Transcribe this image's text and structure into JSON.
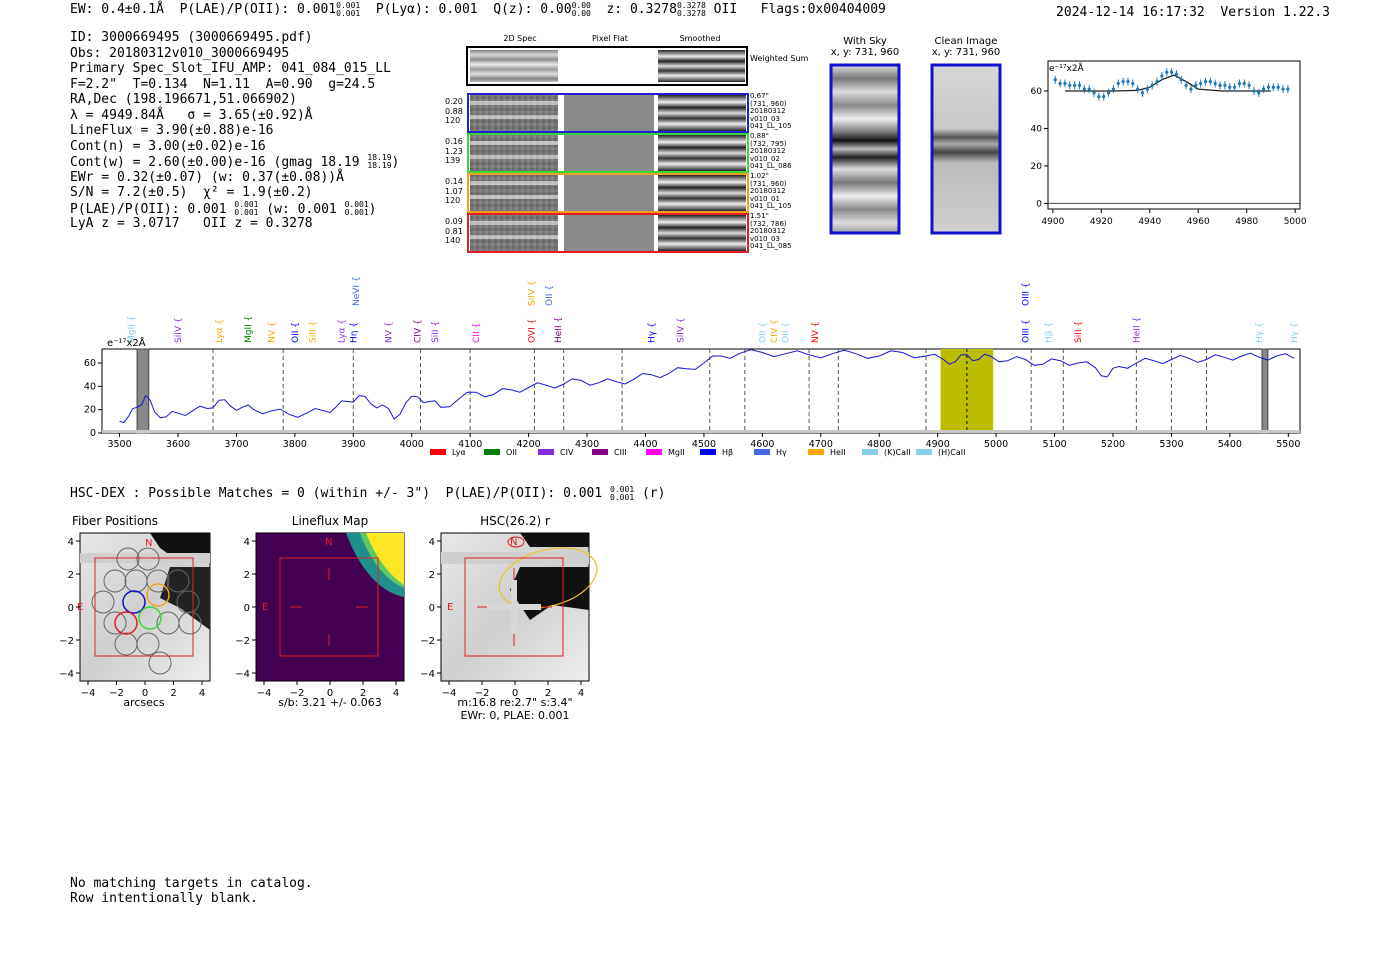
{
  "header": {
    "ew": "EW: 0.4±0.1Å",
    "plae_label": "P(LAE)/P(OII): 0.001",
    "plae_hi": "0.001",
    "plae_lo": "0.001",
    "plya": "P(Lyα): 0.001",
    "qz": "Q(z): 0.00",
    "qz_hi": "0.00",
    "qz_lo": "0.00",
    "z": "z: 0.3278",
    "z_hi": "0.3278",
    "z_lo": "0.3278",
    "z_line": "OII",
    "flags": "Flags:0x00404009",
    "datetime": "2024-12-14 16:17:32",
    "version": "Version 1.22.3"
  },
  "info": {
    "id": "ID: 3000669495 (3000669495.pdf)",
    "obs": "Obs: 20180312v010_3000669495",
    "primary": "Primary Spec_Slot_IFU_AMP: 041_084_015_LL",
    "fparams": "F=2.2\"  T=0.134  N=1.11  A=0.90  g=24.5",
    "radec": "RA,Dec (198.196671,51.066902)",
    "lambda": "λ = 4949.84Å   σ = 3.65(±0.92)Å",
    "lineflux": "LineFlux = 3.90(±0.88)e-16",
    "contn": "Cont(n) = 3.00(±0.02)e-16",
    "contw": "Cont(w) = 2.60(±0.00)e-16 (gmag 18.19",
    "gmag_hi": "18.19",
    "gmag_lo": "18.19",
    "ewr": "EWr = 0.32(±0.07) (w: 0.37(±0.08))Å",
    "sn": "S/N = 7.2(±0.5)  χ² = 1.9(±0.2)",
    "plae": "P(LAE)/P(OII): 0.001",
    "plae_hi": "0.001",
    "plae_lo": "0.001",
    "plae_w": "(w: 0.001",
    "plae_w_hi": "0.001",
    "plae_w_lo": "0.001",
    "lya_z": "LyA z = 3.0717   OII z = 0.3278"
  },
  "stamps": {
    "headers": [
      "2D Spec",
      "Pixel Flat",
      "Smoothed"
    ],
    "weighted_sum": "Weighted Sum",
    "rows": [
      {
        "color": "#1f1fd0",
        "left": [
          "0.20",
          "0.88",
          "120"
        ],
        "right": [
          "0.67\"",
          "(731, 960)",
          "20180312",
          "v010_03",
          "041_LL_105"
        ]
      },
      {
        "color": "#3ad63a",
        "left": [
          "0.16",
          "1.23",
          "139"
        ],
        "right": [
          "0.88\"",
          "(732, 795)",
          "20180312",
          "v010_02",
          "041_LL_086"
        ]
      },
      {
        "color": "#f0a020",
        "left": [
          "0.14",
          "1.07",
          "120"
        ],
        "right": [
          "1.02\"",
          "(731, 960)",
          "20180312",
          "v010_01",
          "041_LL_105"
        ]
      },
      {
        "color": "#e02020",
        "left": [
          "0.09",
          "0.81",
          "140"
        ],
        "right": [
          "1.51\"",
          "(732, 786)",
          "20180312",
          "v010_03",
          "041_LL_085"
        ]
      }
    ]
  },
  "images": {
    "with_sky_title": "With Sky",
    "with_sky_sub": "x, y: 731, 960",
    "clean_title": "Clean Image",
    "clean_sub": "x, y: 731, 960"
  },
  "zoom_chart": {
    "ylabel_unit": "e⁻¹⁷x2Å",
    "chart_data": {
      "type": "scatter",
      "x": [
        4901,
        4903,
        4905,
        4907,
        4909,
        4911,
        4913,
        4915,
        4917,
        4919,
        4921,
        4923,
        4925,
        4927,
        4929,
        4931,
        4933,
        4935,
        4937,
        4939,
        4941,
        4943,
        4945,
        4947,
        4949,
        4951,
        4953,
        4955,
        4957,
        4959,
        4961,
        4963,
        4965,
        4967,
        4969,
        4971,
        4973,
        4975,
        4977,
        4979,
        4981,
        4983,
        4985,
        4987,
        4989,
        4991,
        4993,
        4995,
        4997
      ],
      "y": [
        66,
        64,
        64,
        63,
        63,
        63,
        61,
        61,
        59,
        57,
        57,
        59,
        61,
        64,
        65,
        65,
        64,
        61,
        59,
        61,
        63,
        65,
        68,
        70,
        70,
        69,
        66,
        63,
        61,
        63,
        64,
        65,
        65,
        64,
        63,
        63,
        62,
        62,
        64,
        64,
        63,
        60,
        59,
        61,
        62,
        62,
        62,
        61,
        61
      ],
      "fit_x": [
        4905,
        4915,
        4925,
        4935,
        4940,
        4945,
        4950,
        4955,
        4960,
        4970,
        4980,
        4990
      ],
      "fit_y": [
        60,
        60,
        60,
        60.3,
        62,
        66,
        68.5,
        65,
        61,
        60,
        60,
        60
      ],
      "xlim": [
        4898,
        5002
      ],
      "ylim": [
        -3,
        76
      ],
      "xticks": [
        4900,
        4920,
        4940,
        4960,
        4980,
        5000
      ],
      "yticks": [
        0,
        20,
        40,
        60
      ]
    }
  },
  "full_spectrum": {
    "ylabel_unit": "e⁻¹⁷x2Å",
    "chart_data": {
      "type": "line",
      "title": "",
      "xlim": [
        3470,
        5520
      ],
      "ylim": [
        0,
        72
      ],
      "xticks": [
        3500,
        3600,
        3700,
        3800,
        3900,
        4000,
        4100,
        4200,
        4300,
        4400,
        4500,
        4600,
        4700,
        4800,
        4900,
        5000,
        5100,
        5200,
        5300,
        5400,
        5500
      ],
      "yticks": [
        0,
        20,
        40,
        60
      ],
      "series": [
        {
          "name": "flux",
          "x": [
            3500,
            3515,
            3530,
            3545,
            3560,
            3580,
            3600,
            3625,
            3650,
            3670,
            3690,
            3710,
            3730,
            3760,
            3790,
            3820,
            3850,
            3870,
            3890,
            3910,
            3930,
            3950,
            3970,
            3990,
            4010,
            4030,
            4050,
            4080,
            4110,
            4140,
            4170,
            4200,
            4230,
            4260,
            4290,
            4320,
            4350,
            4380,
            4410,
            4440,
            4470,
            4500,
            4530,
            4560,
            4600,
            4640,
            4680,
            4720,
            4760,
            4800,
            4840,
            4880,
            4910,
            4930,
            4950,
            4970,
            4990,
            5020,
            5050,
            5080,
            5110,
            5140,
            5170,
            5190,
            5210,
            5240,
            5270,
            5300,
            5330,
            5360,
            5390,
            5420,
            5450,
            5480,
            5510
          ],
          "y": [
            10,
            14,
            22,
            32,
            18,
            14,
            17,
            19,
            21,
            28,
            23,
            22,
            20,
            19,
            16,
            17,
            19,
            22,
            27,
            32,
            25,
            24,
            12,
            26,
            31,
            27,
            22,
            29,
            35,
            33,
            37,
            39,
            41,
            42,
            45,
            43,
            44,
            46,
            50,
            51,
            55,
            60,
            66,
            68,
            69,
            68,
            67,
            68,
            68,
            66,
            69,
            66,
            63,
            61,
            67,
            63,
            66,
            62,
            63,
            59,
            62,
            60,
            56,
            48,
            57,
            60,
            62,
            63,
            64,
            63,
            65,
            66,
            65,
            66,
            64
          ]
        }
      ],
      "lines_top": [
        "MgII",
        "SiIV",
        "Lyα",
        "MgII",
        "NV",
        "OII",
        "SiII",
        "Lyα",
        "Hη",
        "NV",
        "CIV",
        "SiII",
        "CII",
        "OVI",
        "HeII",
        "Hγ",
        "SiIV",
        "OII",
        "CIV",
        "OII",
        "NV",
        "OIII",
        "Hβ",
        "SiII",
        "HeII",
        "Hγ",
        "Hγ"
      ],
      "lines_high": [
        "NeVI",
        "SiIV",
        "OII",
        "OIII"
      ],
      "legend": [
        "Lyα",
        "OII",
        "CIV",
        "CIII",
        "MgII",
        "Hβ",
        "Hγ",
        "HeII",
        "(K)CaII",
        "(H)CaII"
      ],
      "legend_colors": [
        "#ff0000",
        "#008000",
        "#8a2be2",
        "#800080",
        "#ff00ff",
        "#0000ff",
        "#4169e1",
        "#ffa500",
        "#87ceeb",
        "#87ceeb"
      ],
      "shade_x": [
        4905,
        4995
      ]
    }
  },
  "hsc": {
    "line": "HSC-DEX : Possible Matches = 0 (within +/- 3\")  P(LAE)/P(OII): 0.001",
    "line_hi": "0.001",
    "line_lo": "0.001",
    "band": "(r)",
    "panels": [
      {
        "title": "Fiber Positions",
        "xlabel": "arcsecs",
        "compass_n": "N",
        "compass_e": "E"
      },
      {
        "title": "Lineflux Map",
        "xlabel": "s/b: 3.21 +/- 0.063",
        "compass_n": "N",
        "compass_e": "E"
      },
      {
        "title": "HSC(26.2) r",
        "xlabel": "m:16.8  re:2.7\"  s:3.4\"",
        "xlabel2": "EWr: 0, PLAE: 0.001",
        "compass_n": "N",
        "compass_e": "E"
      }
    ],
    "ticks": [
      "−4",
      "−2",
      "0",
      "2",
      "4"
    ],
    "yticks": [
      "4",
      "2",
      "0",
      "−2",
      "−4"
    ]
  },
  "footer": {
    "line1": "No matching targets in catalog.",
    "line2": "Row intentionally blank."
  }
}
